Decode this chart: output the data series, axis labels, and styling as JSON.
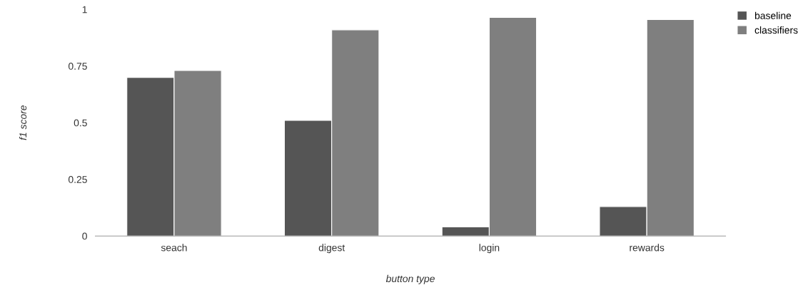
{
  "chart_data": {
    "type": "bar",
    "xlabel": "button type",
    "ylabel": "f1 score",
    "categories": [
      "seach",
      "digest",
      "login",
      "rewards"
    ],
    "series": [
      {
        "name": "baseline",
        "color": "#555555",
        "values": [
          0.7,
          0.51,
          0.04,
          0.13
        ]
      },
      {
        "name": "classifiers",
        "color": "#7f7f7f",
        "values": [
          0.73,
          0.91,
          0.965,
          0.955
        ]
      }
    ],
    "ylim": [
      0,
      1
    ],
    "yticks": [
      0,
      0.25,
      0.5,
      0.75,
      1
    ],
    "grid": false,
    "legend": "top right"
  }
}
